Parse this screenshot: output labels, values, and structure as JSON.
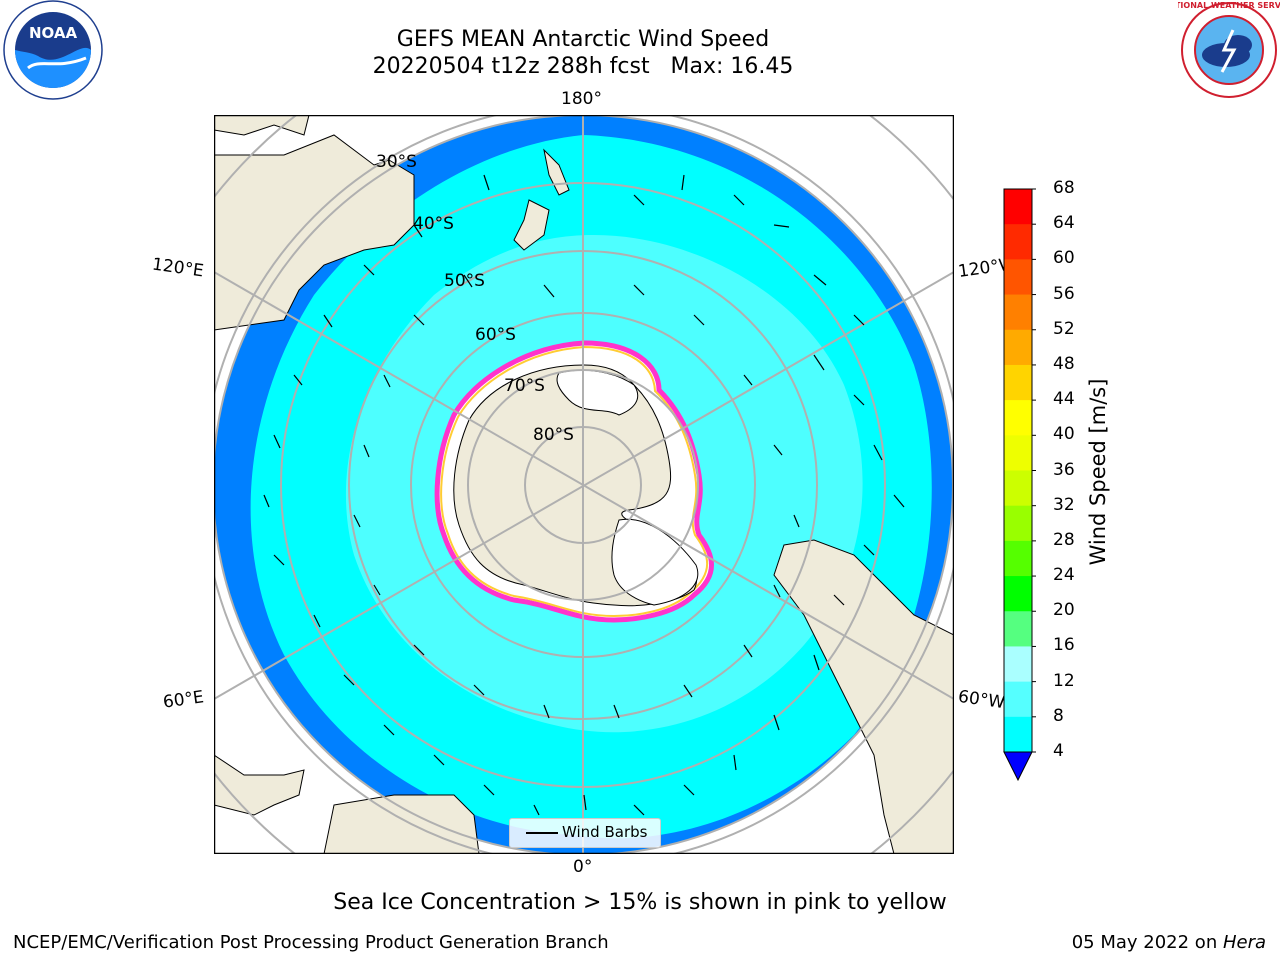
{
  "title": {
    "line1": "GEFS MEAN Antarctic Wind Speed",
    "line2": "20220504 t12z 288h fcst   Max: 16.45"
  },
  "logos": {
    "left": {
      "icon": "noaa-logo",
      "text": "NOAA"
    },
    "right": {
      "icon": "national-weather-service-logo",
      "text": "NATIONAL WEATHER SERVICE"
    }
  },
  "map": {
    "projection": "south-polar-stereographic",
    "longitude_labels": {
      "top": "180°",
      "bottom": "0°",
      "upper_left": "120°E",
      "upper_right": "120°W",
      "lower_left": "60°E",
      "lower_right": "60°W"
    },
    "latitude_labels": [
      "30°S",
      "40°S",
      "50°S",
      "60°S",
      "70°S",
      "80°S"
    ],
    "colors": {
      "land": "#efebda",
      "ice": "#ffffff",
      "ocean_4_8": "#0080ff",
      "ocean_8_12": "#00ffff",
      "ocean_12_16": "#55ffff",
      "sea_ice_edge": "#ff33cc",
      "sea_ice_inner": "#ffcc33",
      "grid": "#b0b0b0"
    }
  },
  "legend": {
    "label": "Wind Barbs"
  },
  "colorbar": {
    "title": "Wind Speed [m/s]",
    "ticks": [
      "68",
      "64",
      "60",
      "56",
      "52",
      "48",
      "44",
      "40",
      "36",
      "32",
      "28",
      "24",
      "20",
      "16",
      "12",
      "8",
      "4"
    ],
    "colors": [
      "#ff0000",
      "#ff2a00",
      "#ff5500",
      "#ff8000",
      "#ffaa00",
      "#ffd400",
      "#ffff00",
      "#eeff00",
      "#ccff00",
      "#99ff00",
      "#55ff00",
      "#00ff00",
      "#55ff80",
      "#aaffff",
      "#55ffff",
      "#00ffff",
      "#0080ff"
    ],
    "under_color": "#0000ff"
  },
  "footer": {
    "note": "Sea Ice Concentration > 15% is shown in pink to yellow",
    "left": "NCEP/EMC/Verification Post Processing Product Generation Branch",
    "right_date": "05 May 2022 on ",
    "right_host": "Hera"
  }
}
